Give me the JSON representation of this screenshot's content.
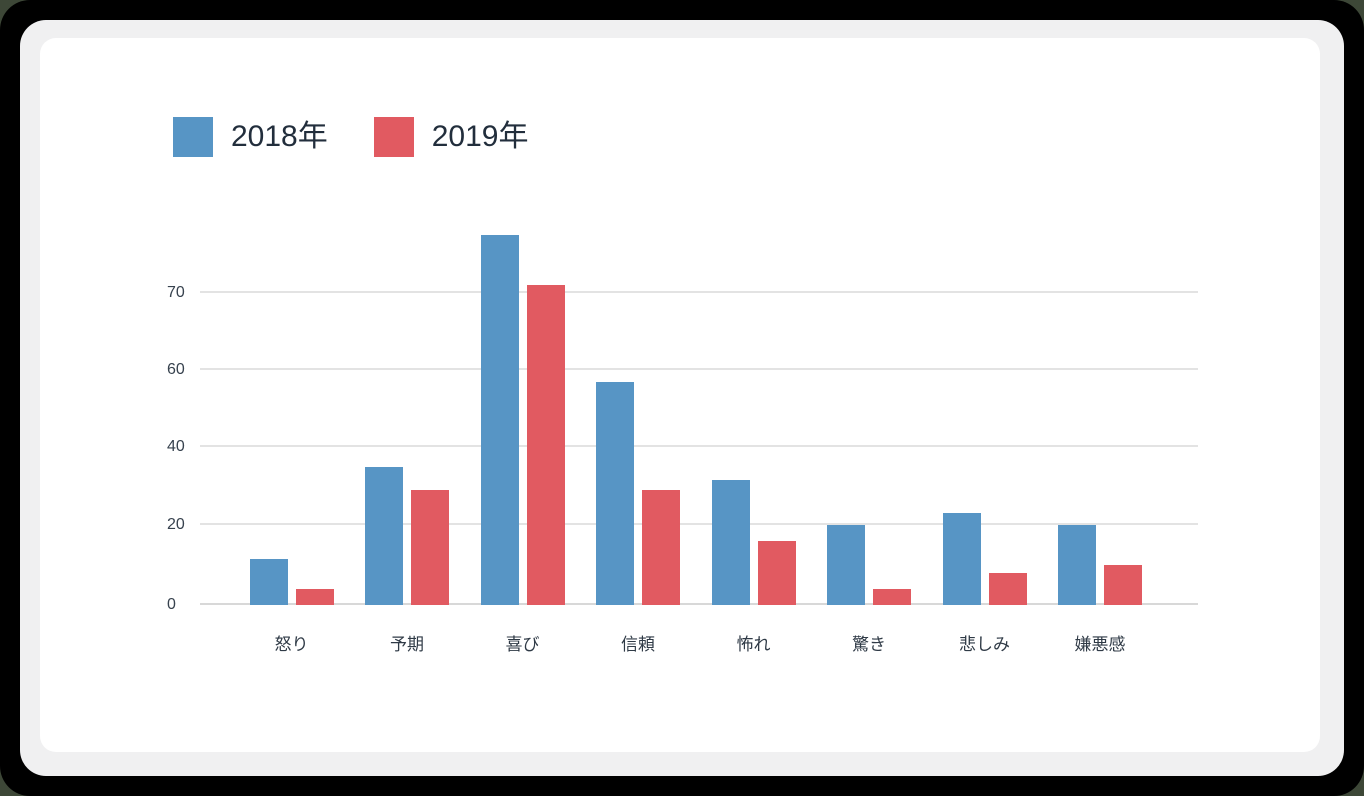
{
  "colors": {
    "page_backdrop": "#3d4737",
    "frame": "#000000",
    "panel": "#f0f0f1",
    "card": "#ffffff",
    "gridline": "#e3e3e3",
    "axis_line": "#d8d8d8",
    "tick_text": "#37424e",
    "category_text": "#2f3a46",
    "legend_text": "#222e3c",
    "series_2018": "#5795c5",
    "series_2019": "#e15a61"
  },
  "legend": {
    "items": [
      {
        "label": "2018年",
        "color": "#5795c5"
      },
      {
        "label": "2019年",
        "color": "#e15a61"
      }
    ]
  },
  "chart_data": {
    "type": "bar",
    "categories": [
      "怒り",
      "予期",
      "喜び",
      "信頼",
      "怖れ",
      "驚き",
      "悲しみ",
      "嫌悪感"
    ],
    "series": [
      {
        "name": "2018年",
        "color": "#5795c5",
        "values": [
          11.5,
          35,
          77.5,
          57,
          31.5,
          20,
          23,
          20
        ]
      },
      {
        "name": "2019年",
        "color": "#e15a61",
        "values": [
          4,
          29,
          71,
          29,
          16,
          4,
          8,
          10
        ]
      }
    ],
    "y_ticks": [
      0,
      20,
      40,
      60,
      70
    ],
    "y_ticks_evenly_spaced": true,
    "ylim": [
      0,
      78
    ],
    "grid": true,
    "legend_position": "top-left"
  }
}
